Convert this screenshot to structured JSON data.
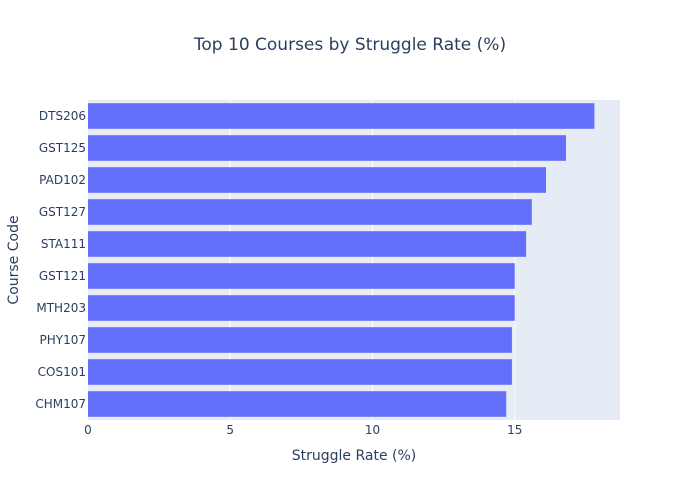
{
  "chart_data": {
    "type": "bar",
    "orientation": "horizontal",
    "title": "Top 10 Courses by Struggle Rate (%)",
    "xlabel": "Struggle Rate (%)",
    "ylabel": "Course Code",
    "categories": [
      "DTS206",
      "GST125",
      "PAD102",
      "GST127",
      "STA111",
      "GST121",
      "MTH203",
      "PHY107",
      "COS101",
      "CHM107"
    ],
    "values": [
      17.8,
      16.8,
      16.1,
      15.6,
      15.4,
      15.0,
      15.0,
      14.9,
      14.9,
      14.7
    ],
    "xlim": [
      0,
      18.7
    ],
    "xticks": [
      0,
      5,
      10,
      15
    ],
    "grid": true,
    "legend": "none",
    "colors": {
      "bar": "#636efa",
      "plot_bg": "#e5ecf6",
      "grid": "#ffffff",
      "text": "#2a3f5f"
    }
  }
}
